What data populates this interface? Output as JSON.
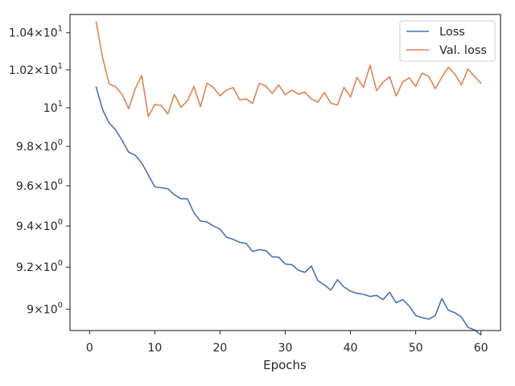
{
  "chart_data": {
    "type": "line",
    "xlabel": "Epochs",
    "ylabel": "",
    "title": "",
    "yscale": "log",
    "xlim": [
      -3,
      63
    ],
    "ylim": [
      8.9,
      10.5
    ],
    "xticks": [
      0,
      10,
      20,
      30,
      40,
      50,
      60
    ],
    "xtick_labels": [
      "0",
      "10",
      "20",
      "30",
      "40",
      "50",
      "60"
    ],
    "yticks": [
      9.0,
      9.2,
      9.4,
      9.6,
      9.8,
      10.0,
      10.2,
      10.4
    ],
    "ytick_labels": [
      {
        "mantissa": "9",
        "times": "×",
        "base": "10",
        "exp": "0"
      },
      {
        "mantissa": "9.2",
        "times": "×",
        "base": "10",
        "exp": "0"
      },
      {
        "mantissa": "9.4",
        "times": "×",
        "base": "10",
        "exp": "0"
      },
      {
        "mantissa": "9.6",
        "times": "×",
        "base": "10",
        "exp": "0"
      },
      {
        "mantissa": "9.8",
        "times": "×",
        "base": "10",
        "exp": "0"
      },
      {
        "mantissa": "",
        "times": "",
        "base": "10",
        "exp": "1"
      },
      {
        "mantissa": "1.02",
        "times": "×",
        "base": "10",
        "exp": "1"
      },
      {
        "mantissa": "1.04",
        "times": "×",
        "base": "10",
        "exp": "1"
      }
    ],
    "grid": false,
    "legend_position": "top-right",
    "series": [
      {
        "name": "Loss",
        "color": "#4c72b0",
        "x": [
          1,
          2,
          3,
          4,
          5,
          6,
          7,
          8,
          9,
          10,
          11,
          12,
          13,
          14,
          15,
          16,
          17,
          18,
          19,
          20,
          21,
          22,
          23,
          24,
          25,
          26,
          27,
          28,
          29,
          30,
          31,
          32,
          33,
          34,
          35,
          36,
          37,
          38,
          39,
          40,
          41,
          42,
          43,
          44,
          45,
          46,
          47,
          48,
          49,
          50,
          51,
          52,
          53,
          54,
          55,
          56,
          57,
          58,
          59,
          60
        ],
        "y": [
          10.11,
          9.99,
          9.92,
          9.885,
          9.83,
          9.77,
          9.755,
          9.715,
          9.655,
          9.595,
          9.59,
          9.585,
          9.555,
          9.535,
          9.535,
          9.465,
          9.425,
          9.42,
          9.4,
          9.385,
          9.345,
          9.335,
          9.32,
          9.315,
          9.275,
          9.285,
          9.28,
          9.25,
          9.248,
          9.215,
          9.212,
          9.185,
          9.175,
          9.205,
          9.135,
          9.115,
          9.09,
          9.14,
          9.105,
          9.085,
          9.075,
          9.07,
          9.06,
          9.065,
          9.045,
          9.08,
          9.03,
          9.045,
          9.015,
          8.97,
          8.96,
          8.953,
          8.97,
          9.05,
          8.995,
          8.983,
          8.963,
          8.915,
          8.903,
          8.88
        ]
      },
      {
        "name": "Val. loss",
        "color": "#dd8452",
        "x": [
          1,
          2,
          3,
          4,
          5,
          6,
          7,
          8,
          9,
          10,
          11,
          12,
          13,
          14,
          15,
          16,
          17,
          18,
          19,
          20,
          21,
          22,
          23,
          24,
          25,
          26,
          27,
          28,
          29,
          30,
          31,
          32,
          33,
          34,
          35,
          36,
          37,
          38,
          39,
          40,
          41,
          42,
          43,
          44,
          45,
          46,
          47,
          48,
          49,
          50,
          51,
          52,
          53,
          54,
          55,
          56,
          57,
          58,
          59,
          60
        ],
        "y": [
          10.46,
          10.265,
          10.125,
          10.11,
          10.07,
          9.995,
          10.1,
          10.17,
          9.955,
          10.017,
          10.012,
          9.967,
          10.07,
          10.002,
          10.036,
          10.112,
          10.005,
          10.13,
          10.105,
          10.063,
          10.093,
          10.106,
          10.042,
          10.046,
          10.023,
          10.128,
          10.115,
          10.075,
          10.12,
          10.068,
          10.093,
          10.072,
          10.082,
          10.046,
          10.03,
          10.08,
          10.023,
          10.015,
          10.107,
          10.056,
          10.16,
          10.107,
          10.225,
          10.09,
          10.135,
          10.163,
          10.062,
          10.135,
          10.158,
          10.113,
          10.183,
          10.165,
          10.1,
          10.161,
          10.215,
          10.178,
          10.12,
          10.205,
          10.165,
          10.13
        ]
      }
    ]
  }
}
